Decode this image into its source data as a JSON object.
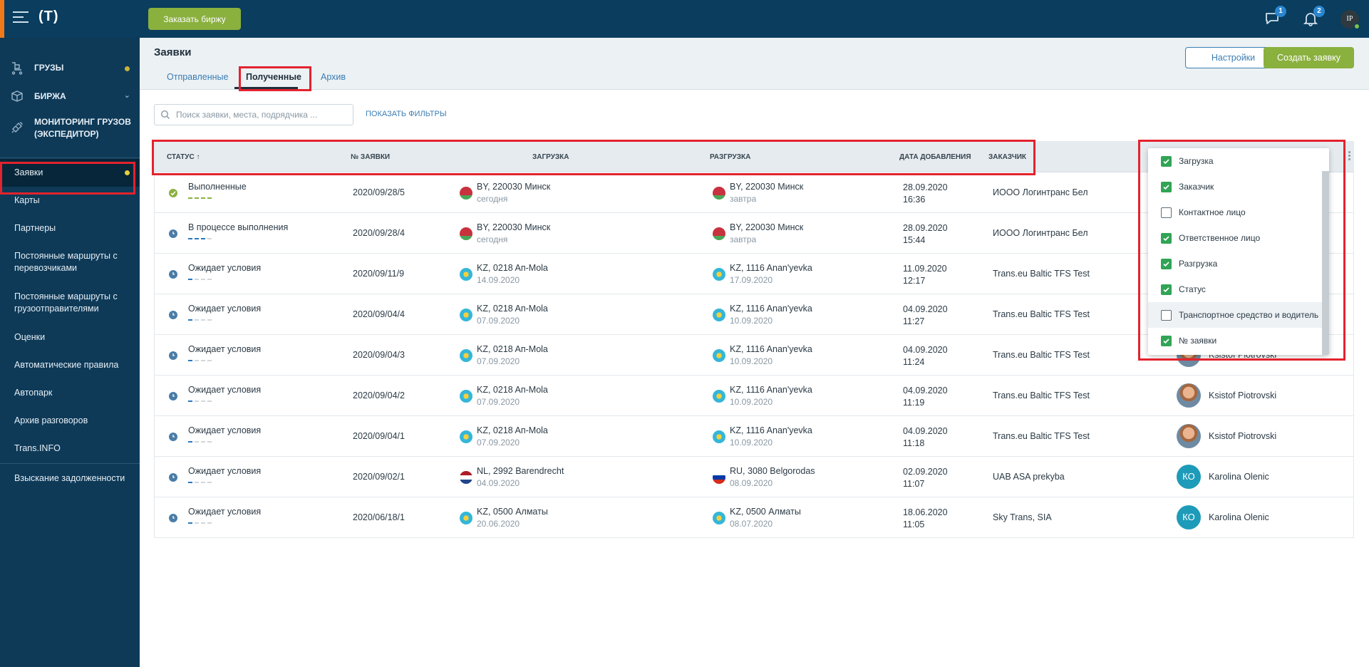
{
  "topbar": {
    "logo": "(T)",
    "order_button": "Заказать биржу",
    "messages_badge": "1",
    "notifications_badge": "2",
    "user_initials": "IP"
  },
  "sidebar": {
    "main": [
      {
        "label": "ГРУЗЫ",
        "icon": "cargo-icon"
      },
      {
        "label": "БИРЖА",
        "icon": "box-icon"
      },
      {
        "label": "МОНИТОРИНГ ГРУЗОВ (ЭКСПЕДИТОР)",
        "icon": "satellite-icon"
      }
    ],
    "items": [
      "Заявки",
      "Карты",
      "Партнеры",
      "Постоянные маршруты с перевозчиками",
      "Постоянные маршруты с грузоотправителями",
      "Оценки",
      "Автоматические правила",
      "Автопарк",
      "Архив разговоров",
      "Trans.INFO",
      "Взыскание задолженности"
    ]
  },
  "page": {
    "title": "Заявки",
    "tabs": [
      "Отправленные",
      "Полученные",
      "Архив"
    ],
    "active_tab": "Полученные",
    "settings_button": "Настройки",
    "create_button": "Создать заявку",
    "search_placeholder": "Поиск заявки, места, подрядчика ...",
    "show_filters": "ПОКАЗАТЬ ФИЛЬТРЫ"
  },
  "table": {
    "columns": [
      "СТАТУС ↑",
      "№ ЗАЯВКИ",
      "ЗАГРУЗКА",
      "РАЗГРУЗКА",
      "ДАТА ДОБАВЛЕНИЯ",
      "ЗАКАЗЧИК"
    ],
    "rows": [
      {
        "status": "Выполненные",
        "status_kind": "done",
        "progress": [
          1,
          1,
          1,
          1
        ],
        "number": "2020/09/28/5",
        "load_flag": "by",
        "load": "BY, 220030 Минск",
        "load_sub": "сегодня",
        "unload_flag": "by",
        "unload": "BY, 220030 Минск",
        "unload_sub": "завтра",
        "date": "28.09.2020",
        "time": "16:36",
        "customer": "ИООО Логинтранс Бел",
        "person": "",
        "person_avatar": ""
      },
      {
        "status": "В процессе выполнения",
        "status_kind": "progress",
        "progress": [
          2,
          2,
          2,
          0
        ],
        "number": "2020/09/28/4",
        "load_flag": "by",
        "load": "BY, 220030 Минск",
        "load_sub": "сегодня",
        "unload_flag": "by",
        "unload": "BY, 220030 Минск",
        "unload_sub": "завтра",
        "date": "28.09.2020",
        "time": "15:44",
        "customer": "ИООО Логинтранс Бел",
        "person": "",
        "person_avatar": ""
      },
      {
        "status": "Ожидает условия",
        "status_kind": "waiting",
        "progress": [
          2,
          0,
          0,
          0
        ],
        "number": "2020/09/11/9",
        "load_flag": "kz",
        "load": "KZ, 0218 Aп-Mola",
        "load_sub": "14.09.2020",
        "unload_flag": "kz",
        "unload": "KZ, 1116 Anan'yevka",
        "unload_sub": "17.09.2020",
        "date": "11.09.2020",
        "time": "12:17",
        "customer": "Trans.eu Baltic TFS Test",
        "person": "",
        "person_avatar": ""
      },
      {
        "status": "Ожидает условия",
        "status_kind": "waiting",
        "progress": [
          2,
          0,
          0,
          0
        ],
        "number": "2020/09/04/4",
        "load_flag": "kz",
        "load": "KZ, 0218 Aп-Mola",
        "load_sub": "07.09.2020",
        "unload_flag": "kz",
        "unload": "KZ, 1116 Anan'yevka",
        "unload_sub": "10.09.2020",
        "date": "04.09.2020",
        "time": "11:27",
        "customer": "Trans.eu Baltic TFS Test",
        "person": "",
        "person_avatar": ""
      },
      {
        "status": "Ожидает условия",
        "status_kind": "waiting",
        "progress": [
          2,
          0,
          0,
          0
        ],
        "number": "2020/09/04/3",
        "load_flag": "kz",
        "load": "KZ, 0218 Aп-Mola",
        "load_sub": "07.09.2020",
        "unload_flag": "kz",
        "unload": "KZ, 1116 Anan'yevka",
        "unload_sub": "10.09.2020",
        "date": "04.09.2020",
        "time": "11:24",
        "customer": "Trans.eu Baltic TFS Test",
        "person": "Ksistof Piotrovski",
        "person_avatar": "photo"
      },
      {
        "status": "Ожидает условия",
        "status_kind": "waiting",
        "progress": [
          2,
          0,
          0,
          0
        ],
        "number": "2020/09/04/2",
        "load_flag": "kz",
        "load": "KZ, 0218 Aп-Mola",
        "load_sub": "07.09.2020",
        "unload_flag": "kz",
        "unload": "KZ, 1116 Anan'yevka",
        "unload_sub": "10.09.2020",
        "date": "04.09.2020",
        "time": "11:19",
        "customer": "Trans.eu Baltic TFS Test",
        "person": "Ksistof Piotrovski",
        "person_avatar": "photo"
      },
      {
        "status": "Ожидает условия",
        "status_kind": "waiting",
        "progress": [
          2,
          0,
          0,
          0
        ],
        "number": "2020/09/04/1",
        "load_flag": "kz",
        "load": "KZ, 0218 Aп-Mola",
        "load_sub": "07.09.2020",
        "unload_flag": "kz",
        "unload": "KZ, 1116 Anan'yevka",
        "unload_sub": "10.09.2020",
        "date": "04.09.2020",
        "time": "11:18",
        "customer": "Trans.eu Baltic TFS Test",
        "person": "Ksistof Piotrovski",
        "person_avatar": "photo"
      },
      {
        "status": "Ожидает условия",
        "status_kind": "waiting",
        "progress": [
          2,
          0,
          0,
          0
        ],
        "number": "2020/09/02/1",
        "load_flag": "nl",
        "load": "NL, 2992 Barendrecht",
        "load_sub": "04.09.2020",
        "unload_flag": "ru",
        "unload": "RU, 3080 Belgorodas",
        "unload_sub": "08.09.2020",
        "date": "02.09.2020",
        "time": "11:07",
        "customer": "UAB ASA prekyba",
        "person": "Karolina Olenic",
        "person_avatar": "КО"
      },
      {
        "status": "Ожидает условия",
        "status_kind": "waiting",
        "progress": [
          2,
          0,
          0,
          0
        ],
        "number": "2020/06/18/1",
        "load_flag": "kz",
        "load": "KZ, 0500 Алматы",
        "load_sub": "20.06.2020",
        "unload_flag": "kz",
        "unload": "KZ, 0500 Алматы",
        "unload_sub": "08.07.2020",
        "date": "18.06.2020",
        "time": "11:05",
        "customer": "Sky Trans, SIA",
        "person": "Karolina Olenic",
        "person_avatar": "КО"
      }
    ]
  },
  "column_menu": [
    {
      "label": "Загрузка",
      "checked": true
    },
    {
      "label": "Заказчик",
      "checked": true
    },
    {
      "label": "Контактное лицо",
      "checked": false
    },
    {
      "label": "Ответственное лицо",
      "checked": true
    },
    {
      "label": "Разгрузка",
      "checked": true
    },
    {
      "label": "Статус",
      "checked": true
    },
    {
      "label": "Транспортное средство и водитель",
      "checked": false
    },
    {
      "label": "№ заявки",
      "checked": true
    }
  ],
  "colors": {
    "topbar": "#0a3d5e",
    "sidebar": "#0e3a58",
    "accent_green": "#8ab03e",
    "link_blue": "#3b7db3",
    "highlight_red": "#e3232e"
  }
}
